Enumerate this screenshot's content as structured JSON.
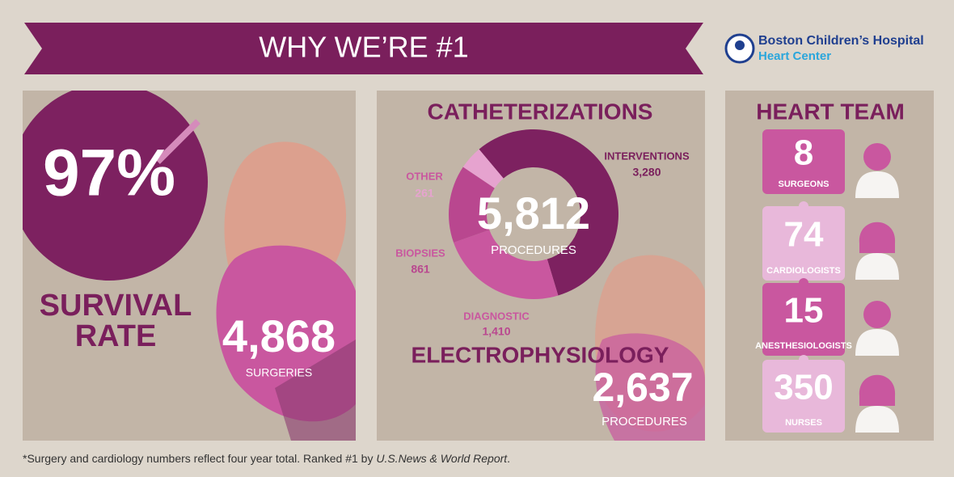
{
  "banner": {
    "title": "WHY WE’RE #1"
  },
  "logo": {
    "name": "Boston Children’s Hospital",
    "subtitle": "Heart Center"
  },
  "survival": {
    "value": "97%",
    "label_lines": [
      "SURVIVAL",
      "RATE"
    ]
  },
  "surgeries": {
    "value": "4,868",
    "label": "SURGERIES"
  },
  "catheterizations": {
    "title": "CATHETERIZATIONS",
    "total": "5,812",
    "total_label": "PROCEDURES"
  },
  "chart_data": {
    "type": "donut",
    "categories": [
      "INTERVENTIONS",
      "DIAGNOSTIC",
      "BIOPSIES",
      "OTHER"
    ],
    "values": [
      3280,
      1410,
      861,
      261
    ],
    "value_labels": [
      "3,280",
      "1,410",
      "861",
      "261"
    ],
    "colors": [
      "#7d2160",
      "#c9579f",
      "#b9478f",
      "#e6a3cf"
    ]
  },
  "electrophysiology": {
    "title": "ELECTROPHYSIOLOGY",
    "value": "2,637",
    "label": "PROCEDURES"
  },
  "heart_team": {
    "title": "HEART TEAM",
    "members": [
      {
        "count": "8",
        "role": "SURGEONS"
      },
      {
        "count": "74",
        "role": "CARDIOLOGISTS"
      },
      {
        "count": "15",
        "role": "ANESTHESIOLOGISTS"
      },
      {
        "count": "350",
        "role": "NURSES"
      }
    ]
  },
  "footnote": {
    "parts": [
      "*Surgery and cardiology numbers reflect four year total. Ranked #1 by ",
      "U.S.News & World Report",
      "."
    ]
  }
}
